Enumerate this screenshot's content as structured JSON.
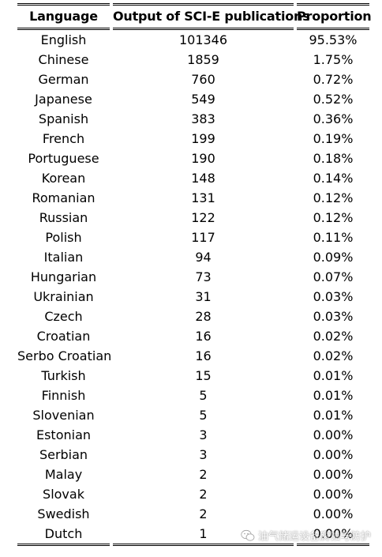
{
  "table": {
    "headers": [
      "Language",
      "Output of SCI-E publications",
      "Proportion"
    ],
    "rows": [
      [
        "English",
        "101346",
        "95.53%"
      ],
      [
        "Chinese",
        "1859",
        "1.75%"
      ],
      [
        "German",
        "760",
        "0.72%"
      ],
      [
        "Japanese",
        "549",
        "0.52%"
      ],
      [
        "Spanish",
        "383",
        "0.36%"
      ],
      [
        "French",
        "199",
        "0.19%"
      ],
      [
        "Portuguese",
        "190",
        "0.18%"
      ],
      [
        "Korean",
        "148",
        "0.14%"
      ],
      [
        "Romanian",
        "131",
        "0.12%"
      ],
      [
        "Russian",
        "122",
        "0.12%"
      ],
      [
        "Polish",
        "117",
        "0.11%"
      ],
      [
        "Italian",
        "94",
        "0.09%"
      ],
      [
        "Hungarian",
        "73",
        "0.07%"
      ],
      [
        "Ukrainian",
        "31",
        "0.03%"
      ],
      [
        "Czech",
        "28",
        "0.03%"
      ],
      [
        "Croatian",
        "16",
        "0.02%"
      ],
      [
        "Serbo Croatian",
        "16",
        "0.02%"
      ],
      [
        "Turkish",
        "15",
        "0.01%"
      ],
      [
        "Finnish",
        "5",
        "0.01%"
      ],
      [
        "Slovenian",
        "5",
        "0.01%"
      ],
      [
        "Estonian",
        "3",
        "0.00%"
      ],
      [
        "Serbian",
        "3",
        "0.00%"
      ],
      [
        "Malay",
        "2",
        "0.00%"
      ],
      [
        "Slovak",
        "2",
        "0.00%"
      ],
      [
        "Swedish",
        "2",
        "0.00%"
      ],
      [
        "Dutch",
        "1",
        "0.00%"
      ]
    ]
  },
  "watermark": {
    "text": "油气储运设备腐蚀与防护",
    "icon": "wechat-icon"
  }
}
